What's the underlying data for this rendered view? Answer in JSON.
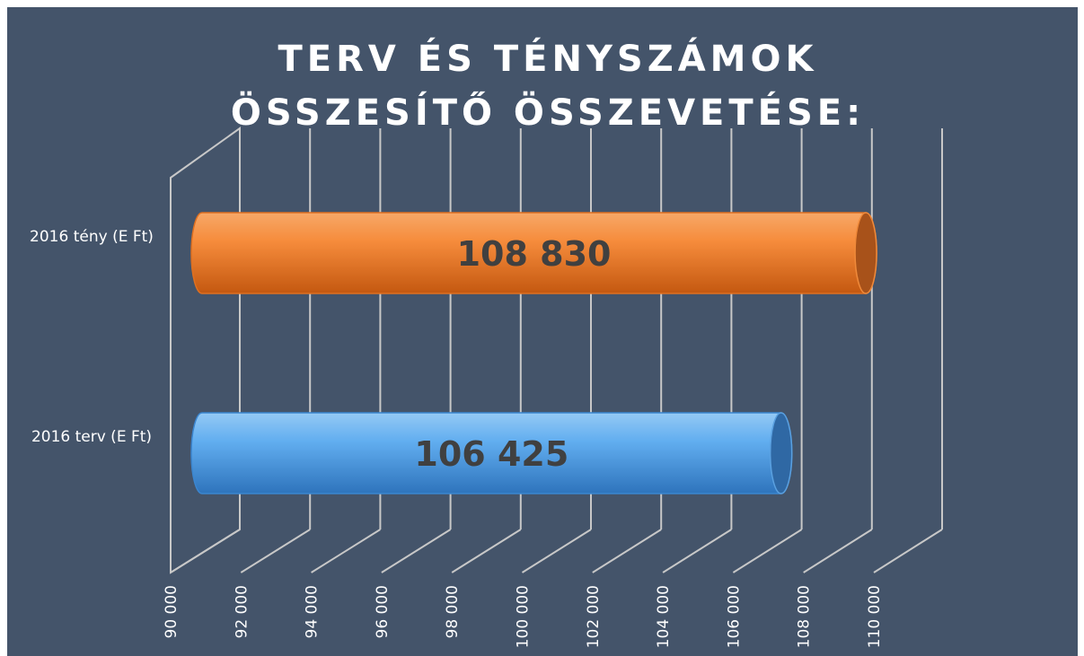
{
  "chart_data": {
    "type": "bar",
    "orientation": "horizontal",
    "title": "TERV ÉS TÉNYSZÁMOK ÖSSZESÍTŐ ÖSSZEVETÉSE:",
    "categories": [
      "2016 tény (E Ft)",
      "2016 terv (E Ft)"
    ],
    "values": [
      108830,
      106425
    ],
    "value_labels": [
      "108 830",
      "106 425"
    ],
    "colors": [
      "#f58a38",
      "#5aa8ec"
    ],
    "xlim": [
      90000,
      110000
    ],
    "xticks": [
      {
        "value": 90000,
        "label": "90 000"
      },
      {
        "value": 92000,
        "label": "92 000"
      },
      {
        "value": 94000,
        "label": "94 000"
      },
      {
        "value": 96000,
        "label": "96 000"
      },
      {
        "value": 98000,
        "label": "98 000"
      },
      {
        "value": 100000,
        "label": "100 000"
      },
      {
        "value": 102000,
        "label": "102 000"
      },
      {
        "value": 104000,
        "label": "104 000"
      },
      {
        "value": 106000,
        "label": "106 000"
      },
      {
        "value": 108000,
        "label": "108 000"
      },
      {
        "value": 110000,
        "label": "110 000"
      }
    ],
    "grid": true
  }
}
